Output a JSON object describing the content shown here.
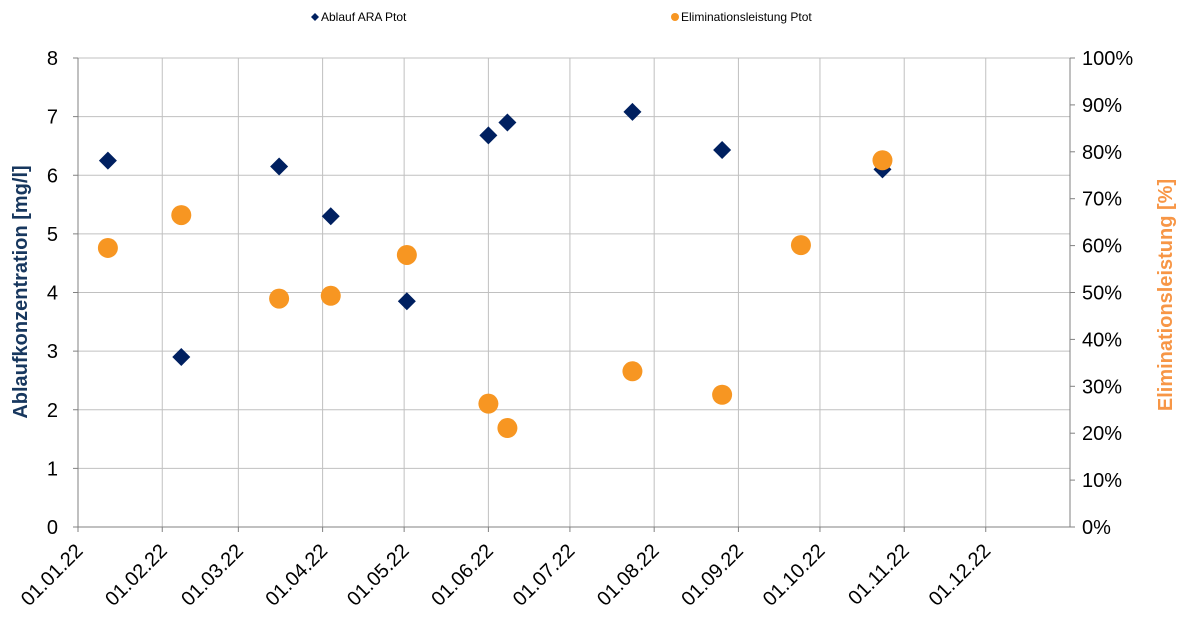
{
  "chart_data": {
    "type": "scatter",
    "x_axis": {
      "type": "date",
      "tick_labels": [
        "01.01.22",
        "01.02.22",
        "01.03.22",
        "01.04.22",
        "01.05.22",
        "01.06.22",
        "01.07.22",
        "01.08.22",
        "01.09.22",
        "01.10.22",
        "01.11.22",
        "01.12.22"
      ],
      "tick_dates": [
        "2022-01-01",
        "2022-02-01",
        "2022-03-01",
        "2022-04-01",
        "2022-05-01",
        "2022-06-01",
        "2022-07-01",
        "2022-08-01",
        "2022-09-01",
        "2022-10-01",
        "2022-11-01",
        "2022-12-01"
      ],
      "range": [
        "2022-01-01",
        "2022-12-31"
      ],
      "grid": true
    },
    "y_left": {
      "label": "Ablaufkonzentration [mg/l]",
      "color": "#17375e",
      "range": [
        0,
        8
      ],
      "ticks": [
        0,
        1,
        2,
        3,
        4,
        5,
        6,
        7,
        8
      ],
      "tick_labels": [
        "0",
        "1",
        "2",
        "3",
        "4",
        "5",
        "6",
        "7",
        "8"
      ],
      "grid": true
    },
    "y_right": {
      "label": "Eliminationsleistung [%]",
      "color": "#f79646",
      "range": [
        0,
        100
      ],
      "ticks": [
        0,
        10,
        20,
        30,
        40,
        50,
        60,
        70,
        80,
        90,
        100
      ],
      "tick_labels": [
        "0%",
        "10%",
        "20%",
        "30%",
        "40%",
        "50%",
        "60%",
        "70%",
        "80%",
        "90%",
        "100%"
      ]
    },
    "legend_position": "top",
    "series": [
      {
        "name": "Ablauf ARA Ptot",
        "marker": "diamond",
        "color": "#002060",
        "axis": "left",
        "points": [
          {
            "x": "2022-01-12",
            "y": 6.25
          },
          {
            "x": "2022-02-08",
            "y": 2.9
          },
          {
            "x": "2022-03-16",
            "y": 6.15
          },
          {
            "x": "2022-04-04",
            "y": 5.3
          },
          {
            "x": "2022-05-02",
            "y": 3.85
          },
          {
            "x": "2022-06-01",
            "y": 6.68
          },
          {
            "x": "2022-06-08",
            "y": 6.9
          },
          {
            "x": "2022-07-24",
            "y": 7.08
          },
          {
            "x": "2022-08-26",
            "y": 6.43
          },
          {
            "x": "2022-10-24",
            "y": 6.1
          }
        ]
      },
      {
        "name": "Eliminationsleistung Ptot",
        "marker": "circle",
        "color": "#f79622",
        "axis": "right",
        "points": [
          {
            "x": "2022-01-12",
            "y": 59.5
          },
          {
            "x": "2022-02-08",
            "y": 66.5
          },
          {
            "x": "2022-03-16",
            "y": 48.7
          },
          {
            "x": "2022-04-04",
            "y": 49.3
          },
          {
            "x": "2022-05-02",
            "y": 58
          },
          {
            "x": "2022-06-01",
            "y": 26.3
          },
          {
            "x": "2022-06-08",
            "y": 21.1
          },
          {
            "x": "2022-07-24",
            "y": 33.2
          },
          {
            "x": "2022-08-26",
            "y": 28.2
          },
          {
            "x": "2022-09-24",
            "y": 60.1
          },
          {
            "x": "2022-10-24",
            "y": 78.2
          }
        ]
      }
    ]
  }
}
